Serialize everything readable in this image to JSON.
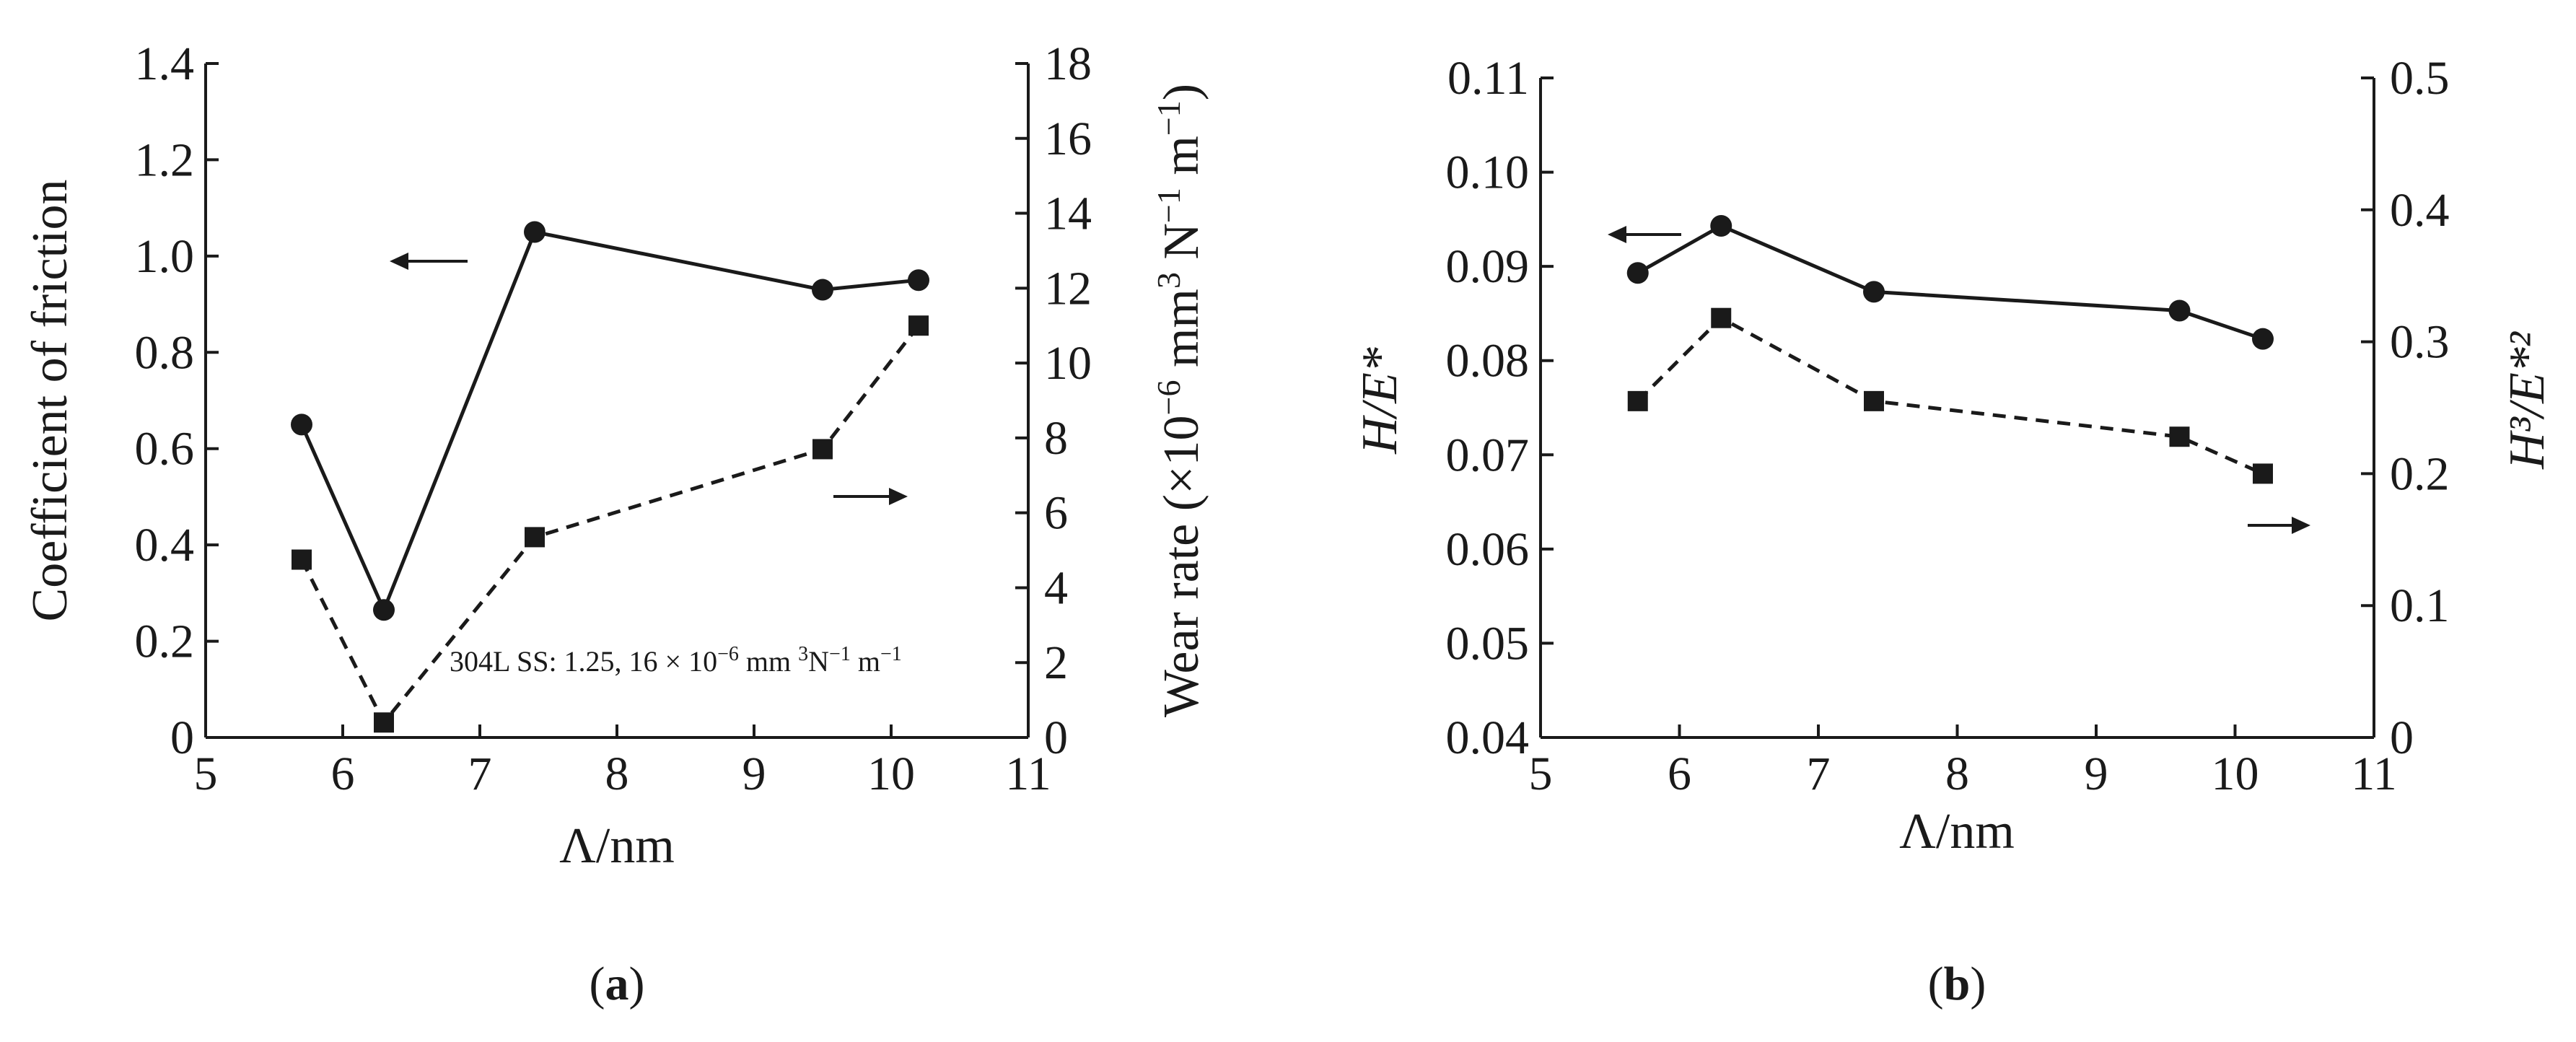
{
  "chart_data": [
    {
      "type": "line",
      "panel_label": "a",
      "xlabel": "Λ/nm",
      "x_ticks": [
        "5",
        "6",
        "7",
        "8",
        "9",
        "10",
        "11"
      ],
      "xlim": [
        5,
        11
      ],
      "ylabel_left": "Coefficient of friction",
      "ylim_left": [
        0,
        1.4
      ],
      "y_ticks_left": [
        "0",
        "0.2",
        "0.4",
        "0.6",
        "0.8",
        "1.0",
        "1.2",
        "1.4"
      ],
      "ylabel_right_main": "Wear rate (×10",
      "ylabel_right_sup1": "−6",
      "ylabel_right_mid": " mm",
      "ylabel_right_sup2": "3",
      "ylabel_right_mid2": " N",
      "ylabel_right_sup3": "−1",
      "ylabel_right_mid3": " m",
      "ylabel_right_sup4": "−1",
      "ylabel_right_end": ")",
      "ylim_right": [
        0,
        18
      ],
      "y_ticks_right": [
        "0",
        "2",
        "4",
        "6",
        "8",
        "10",
        "12",
        "14",
        "16",
        "18"
      ],
      "annotation": "304L SS: 1.25, 16 × 10",
      "annotation_sup1": "−6",
      "annotation_mid": " mm ",
      "annotation_sup2": "3",
      "annotation_mid2": "N",
      "annotation_sup3": "−1",
      "annotation_mid3": " m",
      "annotation_sup4": "−1",
      "series": [
        {
          "name": "Coefficient of friction",
          "axis": "left",
          "style": "solid",
          "marker": "circle",
          "arrow": "left",
          "x": [
            5.7,
            6.3,
            7.4,
            9.5,
            10.2
          ],
          "values": [
            0.65,
            0.265,
            1.05,
            0.93,
            0.95
          ]
        },
        {
          "name": "Wear rate",
          "axis": "right",
          "style": "dashed",
          "marker": "square",
          "arrow": "right",
          "x": [
            5.7,
            6.3,
            7.4,
            9.5,
            10.2
          ],
          "values": [
            4.75,
            0.4,
            5.35,
            7.7,
            11.0
          ]
        }
      ]
    },
    {
      "type": "line",
      "panel_label": "b",
      "xlabel": "Λ/nm",
      "x_ticks": [
        "5",
        "6",
        "7",
        "8",
        "9",
        "10",
        "11"
      ],
      "xlim": [
        5,
        11
      ],
      "ylabel_left": "H/E*",
      "ylim_left": [
        0.04,
        0.11
      ],
      "y_ticks_left": [
        "0.04",
        "0.05",
        "0.06",
        "0.07",
        "0.08",
        "0.09",
        "0.10",
        "0.11"
      ],
      "ylabel_right": "H³/E*²",
      "ylim_right": [
        0,
        0.5
      ],
      "y_ticks_right": [
        "0",
        "0.1",
        "0.2",
        "0.3",
        "0.4",
        "0.5"
      ],
      "series": [
        {
          "name": "H/E*",
          "axis": "left",
          "style": "solid",
          "marker": "circle",
          "arrow": "left",
          "x": [
            5.7,
            6.3,
            7.4,
            9.6,
            10.2
          ],
          "values": [
            0.0893,
            0.0943,
            0.0873,
            0.0853,
            0.0823
          ]
        },
        {
          "name": "H³/E*²",
          "axis": "right",
          "style": "dashed",
          "marker": "square",
          "arrow": "right",
          "x": [
            5.7,
            6.3,
            7.4,
            9.6,
            10.2
          ],
          "values": [
            0.255,
            0.318,
            0.255,
            0.228,
            0.2
          ]
        }
      ]
    }
  ]
}
